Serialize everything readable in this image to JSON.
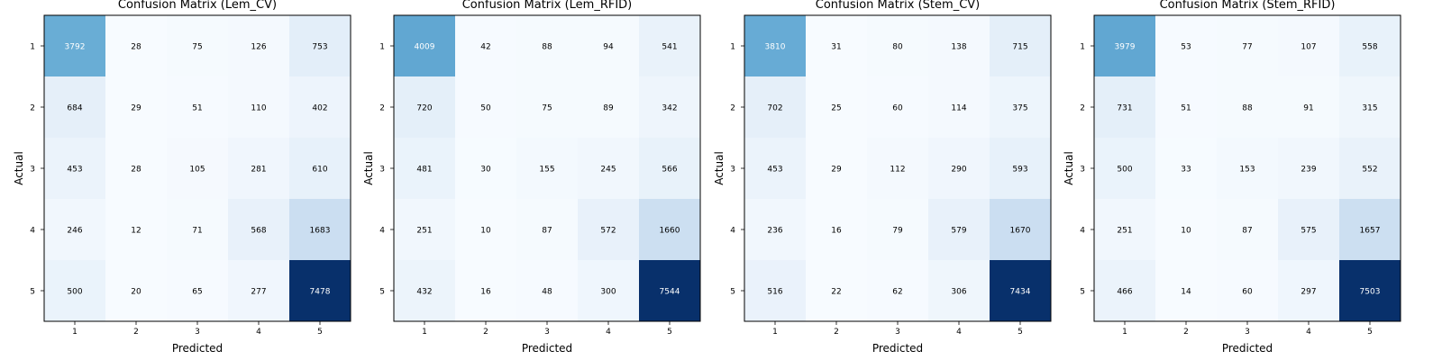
{
  "chart_data": [
    {
      "type": "heatmap",
      "title": "Confusion Matrix (Lem_CV)",
      "xlabel": "Predicted",
      "ylabel": "Actual",
      "x_categories": [
        "1",
        "2",
        "3",
        "4",
        "5"
      ],
      "y_categories": [
        "1",
        "2",
        "3",
        "4",
        "5"
      ],
      "colormap": "Blues",
      "values": [
        [
          3792,
          28,
          75,
          126,
          753
        ],
        [
          684,
          29,
          51,
          110,
          402
        ],
        [
          453,
          28,
          105,
          281,
          610
        ],
        [
          246,
          12,
          71,
          568,
          1683
        ],
        [
          500,
          20,
          65,
          277,
          7478
        ]
      ]
    },
    {
      "type": "heatmap",
      "title": "Confusion Matrix (Lem_RFID)",
      "xlabel": "Predicted",
      "ylabel": "Actual",
      "x_categories": [
        "1",
        "2",
        "3",
        "4",
        "5"
      ],
      "y_categories": [
        "1",
        "2",
        "3",
        "4",
        "5"
      ],
      "colormap": "Blues",
      "values": [
        [
          4009,
          42,
          88,
          94,
          541
        ],
        [
          720,
          50,
          75,
          89,
          342
        ],
        [
          481,
          30,
          155,
          245,
          566
        ],
        [
          251,
          10,
          87,
          572,
          1660
        ],
        [
          432,
          16,
          48,
          300,
          7544
        ]
      ]
    },
    {
      "type": "heatmap",
      "title": "Confusion Matrix (Stem_CV)",
      "xlabel": "Predicted",
      "ylabel": "Actual",
      "x_categories": [
        "1",
        "2",
        "3",
        "4",
        "5"
      ],
      "y_categories": [
        "1",
        "2",
        "3",
        "4",
        "5"
      ],
      "colormap": "Blues",
      "values": [
        [
          3810,
          31,
          80,
          138,
          715
        ],
        [
          702,
          25,
          60,
          114,
          375
        ],
        [
          453,
          29,
          112,
          290,
          593
        ],
        [
          236,
          16,
          79,
          579,
          1670
        ],
        [
          516,
          22,
          62,
          306,
          7434
        ]
      ]
    },
    {
      "type": "heatmap",
      "title": "Confusion Matrix (Stem_RFID)",
      "xlabel": "Predicted",
      "ylabel": "Actual",
      "x_categories": [
        "1",
        "2",
        "3",
        "4",
        "5"
      ],
      "y_categories": [
        "1",
        "2",
        "3",
        "4",
        "5"
      ],
      "colormap": "Blues",
      "values": [
        [
          3979,
          53,
          77,
          107,
          558
        ],
        [
          731,
          51,
          88,
          91,
          315
        ],
        [
          500,
          33,
          153,
          239,
          552
        ],
        [
          251,
          10,
          87,
          575,
          1657
        ],
        [
          466,
          14,
          60,
          297,
          7503
        ]
      ]
    }
  ]
}
